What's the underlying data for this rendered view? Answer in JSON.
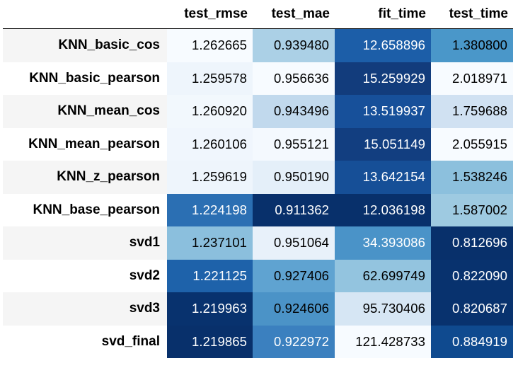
{
  "table": {
    "columns": [
      "test_rmse",
      "test_mae",
      "fit_time",
      "test_time"
    ],
    "rows": [
      {
        "label": "KNN_basic_cos",
        "values": [
          "1.262665",
          "0.939480",
          "12.658896",
          "1.380800"
        ],
        "bg": [
          "#f7fbff",
          "#abd0e6",
          "#1c5ea8",
          "#4a97c9"
        ],
        "fg": [
          "#000000",
          "#000000",
          "#ffffff",
          "#000000"
        ]
      },
      {
        "label": "KNN_basic_pearson",
        "values": [
          "1.259578",
          "0.956636",
          "15.259929",
          "2.018971"
        ],
        "bg": [
          "#eef5fc",
          "#f7fbff",
          "#123c7c",
          "#f7fbff"
        ],
        "fg": [
          "#000000",
          "#000000",
          "#ffffff",
          "#000000"
        ]
      },
      {
        "label": "KNN_mean_cos",
        "values": [
          "1.260920",
          "0.943496",
          "13.519937",
          "1.759688"
        ],
        "bg": [
          "#f2f8fd",
          "#c1d9ed",
          "#17509a",
          "#d0e1f2"
        ],
        "fg": [
          "#000000",
          "#000000",
          "#ffffff",
          "#000000"
        ]
      },
      {
        "label": "KNN_mean_pearson",
        "values": [
          "1.260106",
          "0.955121",
          "15.051149",
          "2.055915"
        ],
        "bg": [
          "#f0f6fd",
          "#f4f9fe",
          "#123e80",
          "#f7fbff"
        ],
        "fg": [
          "#000000",
          "#000000",
          "#ffffff",
          "#000000"
        ]
      },
      {
        "label": "KNN_z_pearson",
        "values": [
          "1.259619",
          "0.950190",
          "13.642154",
          "1.538246"
        ],
        "bg": [
          "#eef5fc",
          "#e4eff9",
          "#164f97",
          "#8cc0dd"
        ],
        "fg": [
          "#000000",
          "#000000",
          "#ffffff",
          "#000000"
        ]
      },
      {
        "label": "KNN_base_pearson",
        "values": [
          "1.224198",
          "0.911362",
          "12.036198",
          "1.587002"
        ],
        "bg": [
          "#2b6fb3",
          "#08306b",
          "#08306b",
          "#9ecae1"
        ],
        "fg": [
          "#ffffff",
          "#ffffff",
          "#ffffff",
          "#000000"
        ]
      },
      {
        "label": "svd1",
        "values": [
          "1.237101",
          "0.951064",
          "34.393086",
          "0.812696"
        ],
        "bg": [
          "#8bbfdd",
          "#e8f1fa",
          "#4a93c8",
          "#08306b"
        ],
        "fg": [
          "#000000",
          "#000000",
          "#ffffff",
          "#ffffff"
        ]
      },
      {
        "label": "svd2",
        "values": [
          "1.221125",
          "0.927406",
          "62.699749",
          "0.822090"
        ],
        "bg": [
          "#1e62aa",
          "#5fa3d1",
          "#93c4df",
          "#08326e"
        ],
        "fg": [
          "#ffffff",
          "#000000",
          "#000000",
          "#ffffff"
        ]
      },
      {
        "label": "svd3",
        "values": [
          "1.219963",
          "0.924606",
          "95.730406",
          "0.820687"
        ],
        "bg": [
          "#08326e",
          "#4b93c7",
          "#d6e6f4",
          "#08326e"
        ],
        "fg": [
          "#ffffff",
          "#000000",
          "#000000",
          "#ffffff"
        ]
      },
      {
        "label": "svd_final",
        "values": [
          "1.219865",
          "0.922972",
          "121.428733",
          "0.884919"
        ],
        "bg": [
          "#08306b",
          "#3b80bf",
          "#f7fbff",
          "#0f4a8f"
        ],
        "fg": [
          "#ffffff",
          "#ffffff",
          "#000000",
          "#ffffff"
        ]
      }
    ]
  }
}
